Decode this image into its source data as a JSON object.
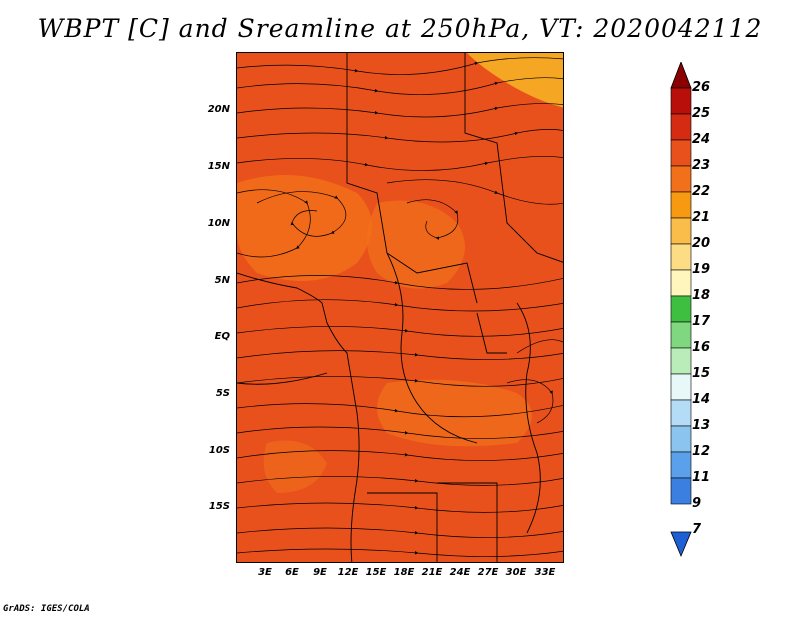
{
  "title": "WBPT [C] and Sreamline at 250hPa, VT: 2020042112",
  "credit": "GrADS: IGES/COLA",
  "map": {
    "lat_labels": [
      "20N",
      "15N",
      "10N",
      "5N",
      "EQ",
      "5S",
      "10S",
      "15S"
    ],
    "lon_labels": [
      "3E",
      "6E",
      "9E",
      "12E",
      "15E",
      "18E",
      "21E",
      "24E",
      "27E",
      "30E",
      "33E"
    ],
    "shading_colors": {
      "dominant": "#e8501c",
      "warm": "#f2701a",
      "light": "#f5a623"
    }
  },
  "colorbar": {
    "labels": [
      "26",
      "25",
      "24",
      "23",
      "22",
      "21",
      "20",
      "19",
      "18",
      "17",
      "16",
      "15",
      "14",
      "13",
      "12",
      "11",
      "9",
      "7"
    ],
    "colors": [
      "#8b0000",
      "#b80f0a",
      "#d42b12",
      "#e8501c",
      "#f2701a",
      "#f79a12",
      "#fbbd4a",
      "#fddc86",
      "#fef6bd",
      "#3fbf3f",
      "#7fd87f",
      "#b9ecb9",
      "#e8f8f8",
      "#b4dcf6",
      "#8cc4f0",
      "#5aa0ea",
      "#3b7fe0",
      "#1f5fd6"
    ]
  }
}
